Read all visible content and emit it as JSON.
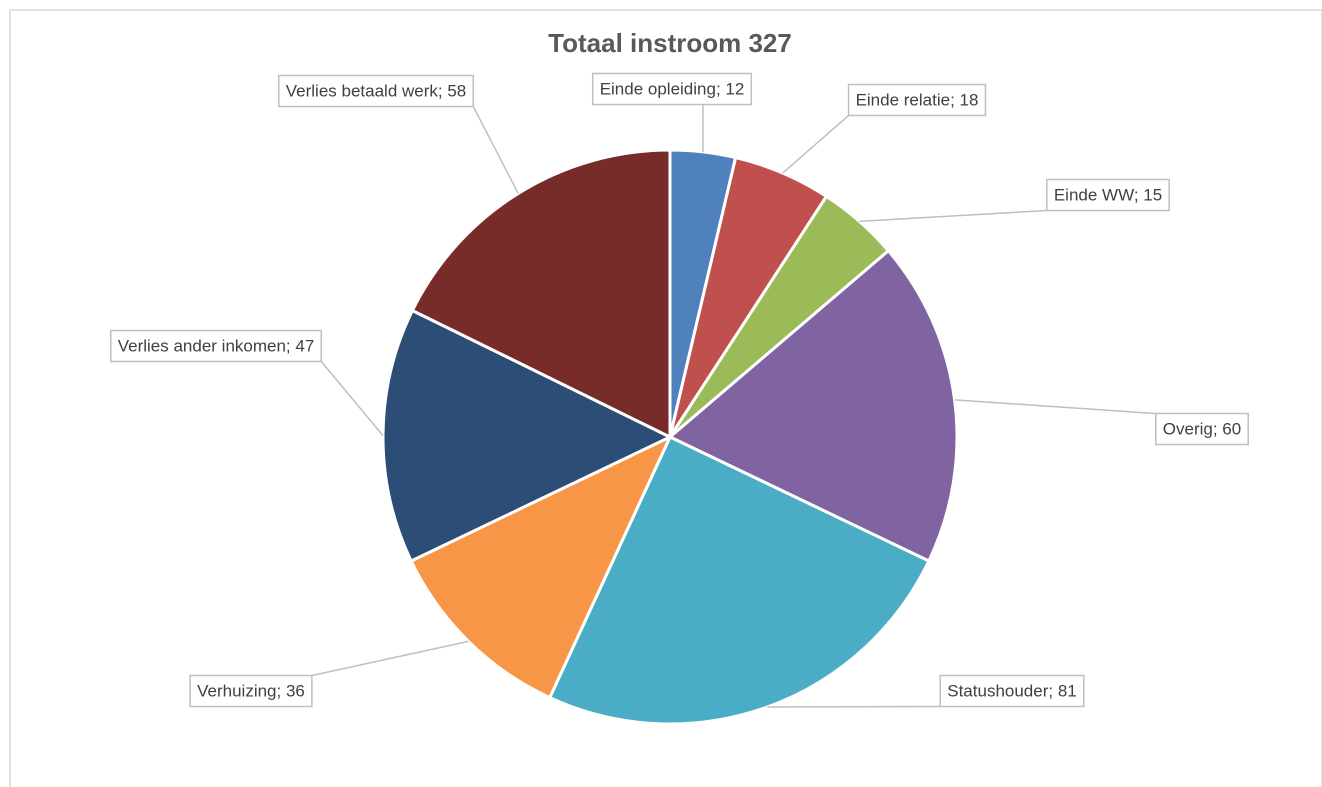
{
  "chart_data": {
    "type": "pie",
    "title": "Totaal instroom 327",
    "values": [
      12,
      18,
      15,
      60,
      81,
      36,
      47,
      58
    ],
    "value_labels": [
      "Einde opleiding; 12",
      "Einde relatie; 18",
      "Einde WW; 15",
      "Overig; 60",
      "Statushouder; 81",
      "Verhuizing; 36",
      "Verlies ander inkomen; 47",
      "Verlies betaald werk; 58"
    ],
    "colors": [
      "#4f81bd",
      "#c0504d",
      "#9bbb59",
      "#8064a2",
      "#4bacc6",
      "#f79646",
      "#2c4d75",
      "#772c2a"
    ]
  }
}
